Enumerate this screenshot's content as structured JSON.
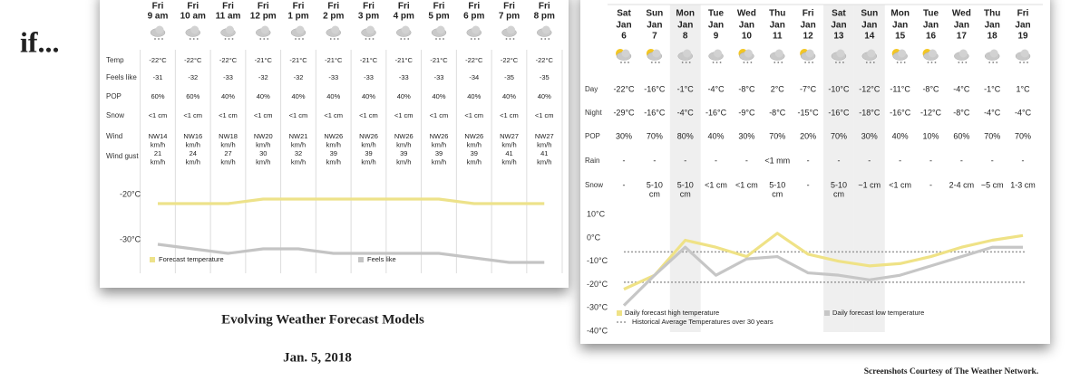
{
  "slide": {
    "heading": "if...",
    "caption": "Evolving Weather Forecast Models",
    "date": "Jan. 5, 2018",
    "credit": "Screenshots Courtesy of The Weather Network."
  },
  "hourly_table": {
    "columns": [
      {
        "day": "Fri",
        "time": "9 am"
      },
      {
        "day": "Fri",
        "time": "10 am"
      },
      {
        "day": "Fri",
        "time": "11 am"
      },
      {
        "day": "Fri",
        "time": "12 pm"
      },
      {
        "day": "Fri",
        "time": "1 pm"
      },
      {
        "day": "Fri",
        "time": "2 pm"
      },
      {
        "day": "Fri",
        "time": "3 pm"
      },
      {
        "day": "Fri",
        "time": "4 pm"
      },
      {
        "day": "Fri",
        "time": "5 pm"
      },
      {
        "day": "Fri",
        "time": "6 pm"
      },
      {
        "day": "Fri",
        "time": "7 pm"
      },
      {
        "day": "Fri",
        "time": "8 pm"
      }
    ],
    "rows": [
      {
        "label": "Temp",
        "cells": [
          "-22°C",
          "-22°C",
          "-22°C",
          "-21°C",
          "-21°C",
          "-21°C",
          "-21°C",
          "-21°C",
          "-21°C",
          "-22°C",
          "-22°C",
          "-22°C"
        ]
      },
      {
        "label": "Feels like",
        "cells": [
          "-31",
          "-32",
          "-33",
          "-32",
          "-32",
          "-33",
          "-33",
          "-33",
          "-33",
          "-34",
          "-35",
          "-35"
        ]
      },
      {
        "label": "POP",
        "cells": [
          "60%",
          "60%",
          "40%",
          "40%",
          "40%",
          "40%",
          "40%",
          "40%",
          "40%",
          "40%",
          "40%",
          "40%"
        ]
      },
      {
        "label": "Snow",
        "cells": [
          "<1 cm",
          "<1 cm",
          "<1 cm",
          "<1 cm",
          "<1 cm",
          "<1 cm",
          "<1 cm",
          "<1 cm",
          "<1 cm",
          "<1 cm",
          "<1 cm",
          "<1 cm"
        ]
      },
      {
        "label": "Wind",
        "cells": [
          [
            "NW14",
            "km/h"
          ],
          [
            "NW16",
            "km/h"
          ],
          [
            "NW18",
            "km/h"
          ],
          [
            "NW20",
            "km/h"
          ],
          [
            "NW21",
            "km/h"
          ],
          [
            "NW26",
            "km/h"
          ],
          [
            "NW26",
            "km/h"
          ],
          [
            "NW26",
            "km/h"
          ],
          [
            "NW26",
            "km/h"
          ],
          [
            "NW26",
            "km/h"
          ],
          [
            "NW27",
            "km/h"
          ],
          [
            "NW27",
            "km/h"
          ]
        ]
      },
      {
        "label": "Wind gust",
        "cells": [
          [
            "21",
            "km/h"
          ],
          [
            "24",
            "km/h"
          ],
          [
            "27",
            "km/h"
          ],
          [
            "30",
            "km/h"
          ],
          [
            "32",
            "km/h"
          ],
          [
            "39",
            "km/h"
          ],
          [
            "39",
            "km/h"
          ],
          [
            "39",
            "km/h"
          ],
          [
            "39",
            "km/h"
          ],
          [
            "39",
            "km/h"
          ],
          [
            "41",
            "km/h"
          ],
          [
            "41",
            "km/h"
          ]
        ]
      }
    ]
  },
  "daily_table": {
    "columns": [
      {
        "day": "Sat",
        "month": "Jan",
        "date": "6"
      },
      {
        "day": "Sun",
        "month": "Jan",
        "date": "7"
      },
      {
        "day": "Mon",
        "month": "Jan",
        "date": "8"
      },
      {
        "day": "Tue",
        "month": "Jan",
        "date": "9"
      },
      {
        "day": "Wed",
        "month": "Jan",
        "date": "10"
      },
      {
        "day": "Thu",
        "month": "Jan",
        "date": "11"
      },
      {
        "day": "Fri",
        "month": "Jan",
        "date": "12"
      },
      {
        "day": "Sat",
        "month": "Jan",
        "date": "13"
      },
      {
        "day": "Sun",
        "month": "Jan",
        "date": "14"
      },
      {
        "day": "Mon",
        "month": "Jan",
        "date": "15"
      },
      {
        "day": "Tue",
        "month": "Jan",
        "date": "16"
      },
      {
        "day": "Wed",
        "month": "Jan",
        "date": "17"
      },
      {
        "day": "Thu",
        "month": "Jan",
        "date": "18"
      },
      {
        "day": "Fri",
        "month": "Jan",
        "date": "19"
      }
    ],
    "rows": [
      {
        "label": "Day",
        "cells": [
          "-22°C",
          "-16°C",
          "-1°C",
          "-4°C",
          "-8°C",
          "2°C",
          "-7°C",
          "-10°C",
          "-12°C",
          "-11°C",
          "-8°C",
          "-4°C",
          "-1°C",
          "1°C"
        ]
      },
      {
        "label": "Night",
        "cells": [
          "-29°C",
          "-16°C",
          "-4°C",
          "-16°C",
          "-9°C",
          "-8°C",
          "-15°C",
          "-16°C",
          "-18°C",
          "-16°C",
          "-12°C",
          "-8°C",
          "-4°C",
          "-4°C"
        ]
      },
      {
        "label": "POP",
        "cells": [
          "30%",
          "70%",
          "80%",
          "40%",
          "30%",
          "70%",
          "20%",
          "70%",
          "30%",
          "40%",
          "10%",
          "60%",
          "70%",
          "70%"
        ]
      },
      {
        "label": "Rain",
        "cells": [
          "-",
          "-",
          "-",
          "-",
          "-",
          "<1 mm",
          "-",
          "-",
          "-",
          "-",
          "-",
          "-",
          "-",
          "-"
        ]
      },
      {
        "label": "Snow",
        "cells": [
          "-",
          [
            "5-10",
            "cm"
          ],
          [
            "5-10",
            "cm"
          ],
          "<1 cm",
          "<1 cm",
          [
            "5-10",
            "cm"
          ],
          "-",
          [
            "5-10",
            "cm"
          ],
          "~1 cm",
          "<1 cm",
          "-",
          "2-4 cm",
          "~5 cm",
          "1-3 cm"
        ]
      }
    ]
  },
  "chart_data": [
    {
      "type": "line",
      "ylim": [
        -37,
        -15
      ],
      "yticks": [
        {
          "value": -20,
          "label": "-20°C"
        },
        {
          "value": -30,
          "label": "-30°C"
        }
      ],
      "series": [
        {
          "name": "Forecast temperature",
          "color": "#ede28a",
          "values": [
            -22,
            -22,
            -22,
            -21,
            -21,
            -21,
            -21,
            -21,
            -21,
            -22,
            -22,
            -22
          ]
        },
        {
          "name": "Feels like",
          "color": "#c4c4c4",
          "values": [
            -31,
            -32,
            -33,
            -32,
            -32,
            -33,
            -33,
            -33,
            -33,
            -34,
            -35,
            -35
          ]
        }
      ]
    },
    {
      "type": "line",
      "ylim": [
        -40,
        12
      ],
      "yticks": [
        {
          "value": 10,
          "label": "10°C"
        },
        {
          "value": 0,
          "label": "0°C"
        },
        {
          "value": -10,
          "label": "-10°C"
        },
        {
          "value": -20,
          "label": "-20°C"
        },
        {
          "value": -30,
          "label": "-30°C"
        },
        {
          "value": -40,
          "label": "-40°C"
        }
      ],
      "series": [
        {
          "name": "Daily forecast high temperature",
          "color": "#efe286",
          "values": [
            -22,
            -16,
            -1,
            -4,
            -8,
            2,
            -7,
            -10,
            -12,
            -11,
            -8,
            -4,
            -1,
            1
          ]
        },
        {
          "name": "Daily forecast low temperature",
          "color": "#c6c6c6",
          "values": [
            -29,
            -16,
            -4,
            -16,
            -9,
            -8,
            -15,
            -16,
            -18,
            -16,
            -12,
            -8,
            -4,
            -4
          ]
        }
      ],
      "reference_lines": {
        "label": "Historical Average Temperatures over 30 years",
        "color": "#9a9a9a",
        "values": [
          -6,
          -19
        ]
      }
    }
  ]
}
